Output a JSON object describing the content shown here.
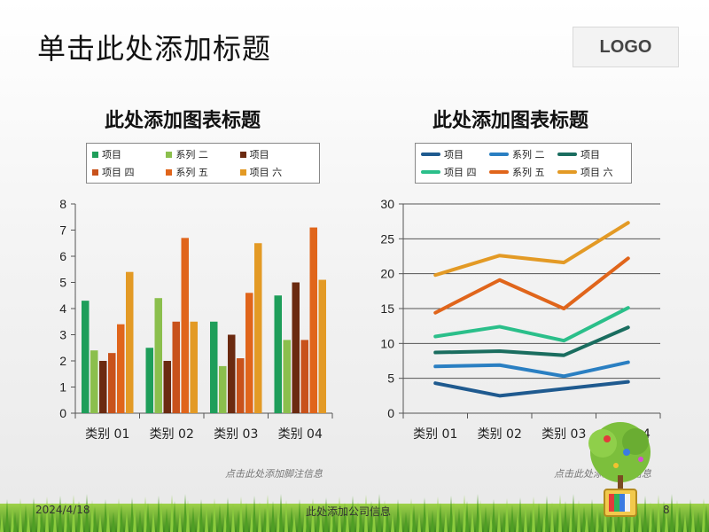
{
  "slide": {
    "title": "单击此处添加标题",
    "logo": "LOGO",
    "footnote_left": "点击此处添加脚注信息",
    "footnote_right": "点击此处添加脚注信息",
    "footer_date": "2024/4/18",
    "footer_company": "此处添加公司信息",
    "footer_page": "8"
  },
  "chart_data": [
    {
      "type": "bar",
      "title": "此处添加图表标题",
      "categories": [
        "类别 01",
        "类别 02",
        "类别 03",
        "类别 04"
      ],
      "ylim": [
        0,
        8
      ],
      "yticks": [
        0,
        1,
        2,
        3,
        4,
        5,
        6,
        7,
        8
      ],
      "grid": "horizontal",
      "legend_position": "top",
      "series": [
        {
          "name": "项目",
          "color": "#1e9e5a",
          "values": [
            4.3,
            2.5,
            3.5,
            4.5
          ]
        },
        {
          "name": "系列 二",
          "color": "#8bbf4d",
          "values": [
            2.4,
            4.4,
            1.8,
            2.8
          ]
        },
        {
          "name": "项目",
          "color": "#6b2a10",
          "values": [
            2.0,
            2.0,
            3.0,
            5.0
          ]
        },
        {
          "name": "项目 四",
          "color": "#c8521b",
          "values": [
            2.3,
            3.5,
            2.1,
            2.8
          ]
        },
        {
          "name": "系列 五",
          "color": "#e0651b",
          "values": [
            3.4,
            6.7,
            4.6,
            7.1
          ]
        },
        {
          "name": "项目 六",
          "color": "#e39a25",
          "values": [
            5.4,
            3.5,
            6.5,
            5.1
          ]
        }
      ]
    },
    {
      "type": "line",
      "title": "此处添加图表标题",
      "categories": [
        "类别 01",
        "类别 02",
        "类别 03",
        "类别 04"
      ],
      "ylim": [
        0,
        30
      ],
      "yticks": [
        0,
        5,
        10,
        15,
        20,
        25,
        30
      ],
      "grid": "horizontal",
      "legend_position": "top",
      "series": [
        {
          "name": "项目",
          "color": "#1f5a8f",
          "values": [
            4.3,
            2.5,
            3.5,
            4.5
          ]
        },
        {
          "name": "系列 二",
          "color": "#2a7fc2",
          "values": [
            6.7,
            6.9,
            5.3,
            7.3
          ]
        },
        {
          "name": "项目",
          "color": "#1a6d5f",
          "values": [
            8.7,
            8.9,
            8.3,
            12.3
          ]
        },
        {
          "name": "项目 四",
          "color": "#2bbf8a",
          "values": [
            11.0,
            12.4,
            10.4,
            15.1
          ]
        },
        {
          "name": "系列 五",
          "color": "#e0651b",
          "values": [
            14.4,
            19.1,
            15.0,
            22.2
          ]
        },
        {
          "name": "项目 六",
          "color": "#e39a25",
          "values": [
            19.8,
            22.6,
            21.6,
            27.3
          ]
        }
      ]
    }
  ]
}
